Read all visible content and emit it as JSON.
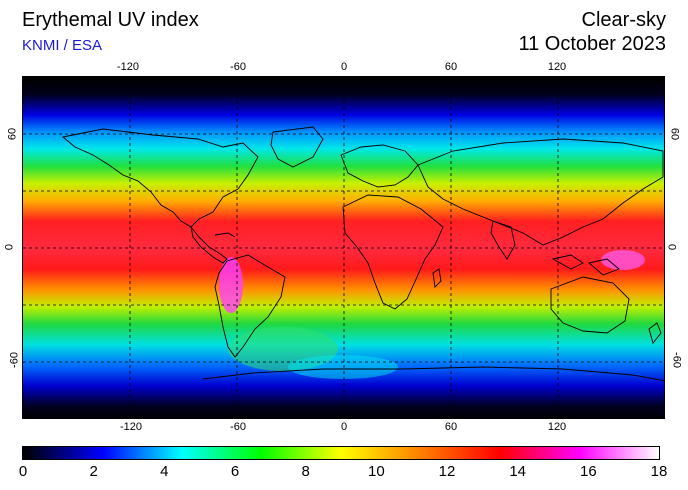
{
  "header": {
    "title": "Erythemal UV index",
    "credit": "KNMI / ESA",
    "sky_condition": "Clear-sky",
    "date": "11 October 2023"
  },
  "map": {
    "lon_range": [
      -180,
      180
    ],
    "lat_range": [
      -90,
      90
    ],
    "grid": "dashed, 30 degree spacing",
    "top_tick_labels": [
      "-120",
      "-60",
      "0",
      "60",
      "120"
    ],
    "bottom_tick_labels": [
      "-120",
      "-60",
      "0",
      "60",
      "120"
    ],
    "left_tick_labels": [
      "60",
      "0",
      "-60"
    ],
    "right_tick_labels": [
      "60",
      "0",
      "-60"
    ]
  },
  "colorbar": {
    "range": [
      0,
      18
    ],
    "labels": [
      "0",
      "2",
      "4",
      "6",
      "8",
      "10",
      "12",
      "14",
      "16",
      "18"
    ],
    "colors": [
      "#000000",
      "#0000ff",
      "#00ffff",
      "#00ff00",
      "#ffff00",
      "#ff8000",
      "#ff0000",
      "#ff00ff",
      "#ffffff"
    ]
  }
}
